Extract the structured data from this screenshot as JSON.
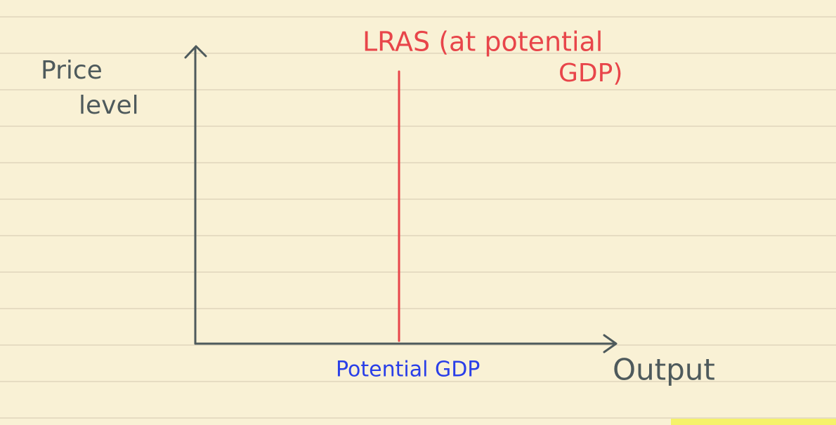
{
  "diagram": {
    "y_axis_label": [
      "Price",
      "level"
    ],
    "curve_label": [
      "LRAS (at potential",
      "GDP)"
    ],
    "x_marker_label": "Potential GDP",
    "x_axis_label": "Output"
  }
}
